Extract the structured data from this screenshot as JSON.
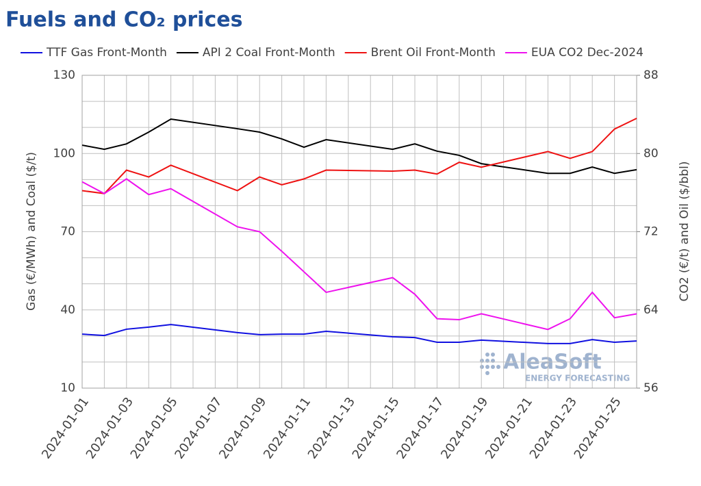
{
  "chart_data": {
    "type": "line",
    "title": "Fuels and CO₂ prices",
    "y_label": "Gas (€/MWh) and Coal ($/t)",
    "y2_label": "CO2 (€/t) and Oil ($/bbl)",
    "logo": {
      "name": "AleaSoft",
      "tagline": "ENERGY FORECASTING"
    },
    "x": [
      "2024-01-01",
      "2024-01-02",
      "2024-01-03",
      "2024-01-04",
      "2024-01-05",
      "2024-01-08",
      "2024-01-09",
      "2024-01-10",
      "2024-01-11",
      "2024-01-12",
      "2024-01-15",
      "2024-01-16",
      "2024-01-17",
      "2024-01-18",
      "2024-01-19",
      "2024-01-22",
      "2024-01-23",
      "2024-01-24",
      "2024-01-25",
      "2024-01-26"
    ],
    "xlim": [
      "2024-01-01",
      "2024-01-26"
    ],
    "xticks": [
      "2024-01-01",
      "2024-01-03",
      "2024-01-05",
      "2024-01-07",
      "2024-01-09",
      "2024-01-11",
      "2024-01-13",
      "2024-01-15",
      "2024-01-17",
      "2024-01-19",
      "2024-01-21",
      "2024-01-23",
      "2024-01-25"
    ],
    "ylim": [
      10,
      130
    ],
    "yticks": [
      10,
      40,
      70,
      100,
      130
    ],
    "minor_yticks": [
      20,
      30,
      50,
      60,
      80,
      90,
      110,
      120
    ],
    "y2lim": [
      56,
      88
    ],
    "y2ticks": [
      56,
      64,
      72,
      80,
      88
    ],
    "grid": true,
    "series": [
      {
        "name": "TTF Gas Front-Month",
        "color": "#1010e0",
        "values": [
          30.7,
          30.2,
          32.6,
          33.4,
          34.4,
          31.3,
          30.5,
          30.7,
          30.7,
          31.8,
          29.7,
          29.4,
          27.6,
          27.6,
          28.4,
          27.1,
          27.1,
          28.6,
          27.6,
          28.1
        ]
      },
      {
        "name": "API 2 Coal Front-Month",
        "color": "#000000",
        "values": [
          103.2,
          101.6,
          103.7,
          108.2,
          113.2,
          109.5,
          108.2,
          105.6,
          102.4,
          105.3,
          101.6,
          103.7,
          100.9,
          99.3,
          96.1,
          92.4,
          92.4,
          94.8,
          92.4,
          93.8
        ]
      },
      {
        "name": "Brent Oil Front-Month",
        "color": "#ee1111",
        "axis": "y2",
        "values": [
          76.2,
          75.9,
          78.3,
          77.6,
          78.8,
          76.2,
          77.6,
          76.8,
          77.4,
          78.3,
          78.2,
          78.3,
          77.9,
          79.1,
          78.6,
          80.2,
          79.5,
          80.2,
          82.5,
          83.6
        ]
      },
      {
        "name": "EUA CO2 Dec-2024",
        "color": "#ee11ee",
        "axis": "y2",
        "values": [
          77.1,
          75.9,
          77.4,
          75.8,
          76.4,
          72.5,
          72.0,
          70.0,
          67.9,
          65.8,
          67.3,
          65.6,
          63.1,
          63.0,
          63.6,
          62.0,
          63.1,
          65.8,
          63.2,
          63.6
        ]
      }
    ]
  }
}
